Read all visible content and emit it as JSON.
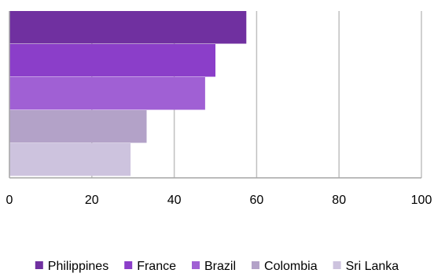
{
  "chart_data": {
    "type": "bar",
    "orientation": "horizontal",
    "title": "",
    "xlabel": "",
    "ylabel": "",
    "xlim": [
      0,
      100
    ],
    "x_ticks": [
      0,
      20,
      40,
      60,
      80,
      100
    ],
    "grid": "vertical",
    "legend_position": "bottom",
    "series": [
      {
        "name": "Philippines",
        "value": 57.5,
        "color": "#7030a0"
      },
      {
        "name": "France",
        "value": 50,
        "color": "#8b3ec9"
      },
      {
        "name": "Brazil",
        "value": 47.5,
        "color": "#a060d4"
      },
      {
        "name": "Colombia",
        "value": 33.3,
        "color": "#b3a2c8"
      },
      {
        "name": "Sri Lanka",
        "value": 29.4,
        "color": "#cdc3de"
      }
    ]
  }
}
